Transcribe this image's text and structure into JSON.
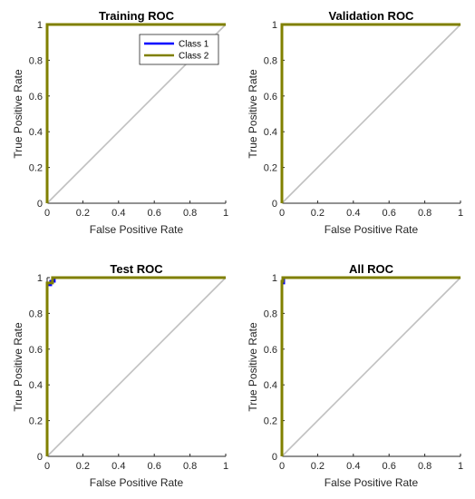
{
  "chart_data": [
    {
      "type": "line",
      "title": "Training ROC",
      "xlabel": "False Positive Rate",
      "ylabel": "True Positive Rate",
      "xlim": [
        0,
        1
      ],
      "ylim": [
        0,
        1
      ],
      "x_ticks": [
        "0",
        "0.2",
        "0.4",
        "0.6",
        "0.8",
        "1"
      ],
      "y_ticks": [
        "0",
        "0.2",
        "0.4",
        "0.6",
        "0.8",
        "1"
      ],
      "legend": {
        "show": true,
        "placement": "top-right"
      },
      "series": [
        {
          "name": "Class 1",
          "color": "#0000ff",
          "x": [
            0,
            0,
            1
          ],
          "y": [
            0,
            1,
            1
          ]
        },
        {
          "name": "Class 2",
          "color": "#808000",
          "x": [
            0,
            0,
            1
          ],
          "y": [
            0,
            1,
            1
          ]
        }
      ],
      "reference_line": {
        "color": "#c0c0c0",
        "x": [
          0,
          1
        ],
        "y": [
          0,
          1
        ]
      }
    },
    {
      "type": "line",
      "title": "Validation ROC",
      "xlabel": "False Positive Rate",
      "ylabel": "True Positive Rate",
      "xlim": [
        0,
        1
      ],
      "ylim": [
        0,
        1
      ],
      "x_ticks": [
        "0",
        "0.2",
        "0.4",
        "0.6",
        "0.8",
        "1"
      ],
      "y_ticks": [
        "0",
        "0.2",
        "0.4",
        "0.6",
        "0.8",
        "1"
      ],
      "legend": {
        "show": false
      },
      "series": [
        {
          "color": "#0000ff",
          "x": [
            0,
            0,
            1
          ],
          "y": [
            0,
            1,
            1
          ]
        },
        {
          "color": "#808000",
          "x": [
            0,
            0,
            1
          ],
          "y": [
            0,
            1,
            1
          ]
        }
      ],
      "reference_line": {
        "color": "#c0c0c0",
        "x": [
          0,
          1
        ],
        "y": [
          0,
          1
        ]
      }
    },
    {
      "type": "line",
      "title": "Test ROC",
      "xlabel": "False Positive Rate",
      "ylabel": "True Positive Rate",
      "xlim": [
        0,
        1
      ],
      "ylim": [
        0,
        1
      ],
      "x_ticks": [
        "0",
        "0.2",
        "0.4",
        "0.6",
        "0.8",
        "1"
      ],
      "y_ticks": [
        "0",
        "0.2",
        "0.4",
        "0.6",
        "0.8",
        "1"
      ],
      "legend": {
        "show": false
      },
      "series": [
        {
          "color": "#0000ff",
          "x": [
            0,
            0,
            0.02,
            0.02,
            0.04,
            0.04,
            1
          ],
          "y": [
            0,
            0.96,
            0.96,
            0.98,
            0.98,
            1,
            1
          ]
        },
        {
          "color": "#808000",
          "x": [
            0,
            0,
            0.03,
            0.03,
            1
          ],
          "y": [
            0,
            0.97,
            0.97,
            1,
            1
          ]
        }
      ],
      "reference_line": {
        "color": "#c0c0c0",
        "x": [
          0,
          1
        ],
        "y": [
          0,
          1
        ]
      }
    },
    {
      "type": "line",
      "title": "All ROC",
      "xlabel": "False Positive Rate",
      "ylabel": "True Positive Rate",
      "xlim": [
        0,
        1
      ],
      "ylim": [
        0,
        1
      ],
      "x_ticks": [
        "0",
        "0.2",
        "0.4",
        "0.6",
        "0.8",
        "1"
      ],
      "y_ticks": [
        "0",
        "0.2",
        "0.4",
        "0.6",
        "0.8",
        "1"
      ],
      "legend": {
        "show": false
      },
      "series": [
        {
          "color": "#0000ff",
          "x": [
            0,
            0,
            0.01,
            0.01,
            1
          ],
          "y": [
            0,
            0.97,
            0.97,
            1,
            1
          ]
        },
        {
          "color": "#808000",
          "x": [
            0,
            0,
            0.005,
            0.005,
            1
          ],
          "y": [
            0,
            0.98,
            0.98,
            1,
            1
          ]
        }
      ],
      "reference_line": {
        "color": "#c0c0c0",
        "x": [
          0,
          1
        ],
        "y": [
          0,
          1
        ]
      }
    }
  ]
}
